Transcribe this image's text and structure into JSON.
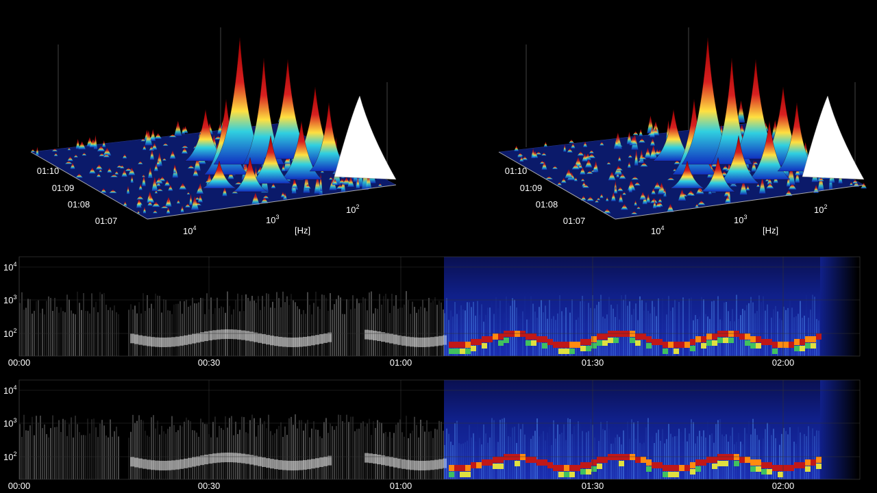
{
  "surfaces": [
    {
      "time_labels": [
        "01:10",
        "01:09",
        "01:08",
        "01:07"
      ],
      "freq_labels": [
        {
          "base": "10",
          "exp": "4"
        },
        {
          "base": "10",
          "exp": "3"
        },
        {
          "base": "10",
          "exp": "2"
        }
      ],
      "unit": "[Hz]"
    },
    {
      "time_labels": [
        "01:10",
        "01:09",
        "01:08",
        "01:07"
      ],
      "freq_labels": [
        {
          "base": "10",
          "exp": "4"
        },
        {
          "base": "10",
          "exp": "3"
        },
        {
          "base": "10",
          "exp": "2"
        }
      ],
      "unit": "[Hz]"
    }
  ],
  "spectrograms": [
    {
      "freq_labels": [
        {
          "base": "10",
          "exp": "4"
        },
        {
          "base": "10",
          "exp": "3"
        },
        {
          "base": "10",
          "exp": "2"
        }
      ],
      "time_labels": [
        "00:00",
        "00:30",
        "01:00",
        "01:30",
        "02:00"
      ]
    },
    {
      "freq_labels": [
        {
          "base": "10",
          "exp": "4"
        },
        {
          "base": "10",
          "exp": "3"
        },
        {
          "base": "10",
          "exp": "2"
        }
      ],
      "time_labels": [
        "00:00",
        "00:30",
        "01:00",
        "01:30",
        "02:00"
      ]
    }
  ]
}
